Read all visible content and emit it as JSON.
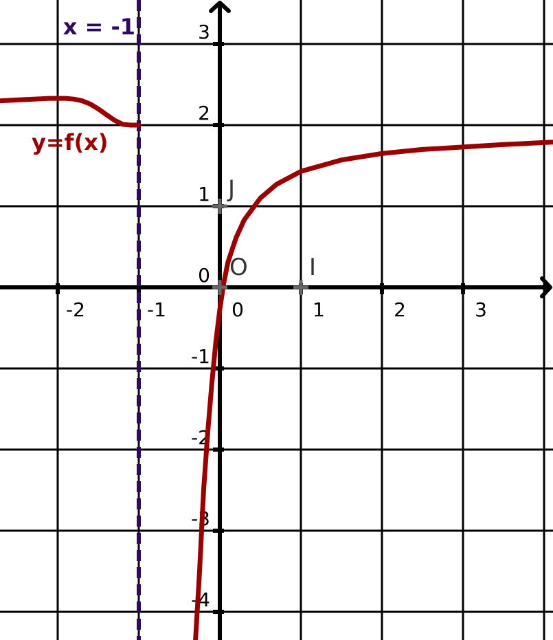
{
  "chart_data": {
    "type": "line",
    "title": "",
    "xlabel": "",
    "ylabel": "",
    "xlim": [
      -2.7,
      4.1
    ],
    "ylim": [
      -4.3,
      3.5
    ],
    "grid": true,
    "x_ticks": [
      -2,
      -1,
      0,
      1,
      2,
      3
    ],
    "x_tick_labels": [
      "-2",
      "-1",
      "0",
      "1",
      "2",
      "3"
    ],
    "y_ticks": [
      -4,
      -3,
      -2,
      -1,
      0,
      1,
      2,
      3
    ],
    "y_tick_labels": [
      "-4",
      "-3",
      "-2",
      "-1",
      "0",
      "1",
      "2",
      "3"
    ],
    "points": [
      {
        "name": "O",
        "label": "O",
        "x": 0,
        "y": 0
      },
      {
        "name": "I",
        "label": "I",
        "x": 1,
        "y": 0
      },
      {
        "name": "J",
        "label": "J",
        "x": 0,
        "y": 1
      }
    ],
    "asymptote": {
      "x": -1,
      "label": "x = -1",
      "color": "#2e0a5e"
    },
    "series": [
      {
        "name": "y=f(x)",
        "color": "#990000",
        "branches": [
          {
            "x": [
              -2.7,
              -2.5,
              -2.3,
              -2.1,
              -2.0,
              -1.9,
              -1.8,
              -1.7,
              -1.6,
              -1.5,
              -1.4,
              -1.3,
              -1.2,
              -1.1,
              -1.05,
              -1.0
            ],
            "y": [
              2.3,
              2.31,
              2.32,
              2.33,
              2.33,
              2.33,
              2.32,
              2.3,
              2.26,
              2.2,
              2.13,
              2.06,
              2.01,
              2.0,
              2.0,
              2.0
            ]
          },
          {
            "x": [
              -0.3,
              -0.25,
              -0.2,
              -0.15,
              -0.1,
              -0.05,
              0.0,
              0.05,
              0.1,
              0.2,
              0.3,
              0.5,
              0.7,
              1.0,
              1.5,
              2.0,
              2.5,
              3.0,
              3.5,
              4.1
            ],
            "y": [
              -4.35,
              -3.5,
              -2.5,
              -1.8,
              -1.2,
              -0.68,
              -0.27,
              0.06,
              0.31,
              0.61,
              0.83,
              1.1,
              1.27,
              1.43,
              1.57,
              1.65,
              1.7,
              1.73,
              1.76,
              1.79
            ]
          }
        ]
      }
    ]
  }
}
